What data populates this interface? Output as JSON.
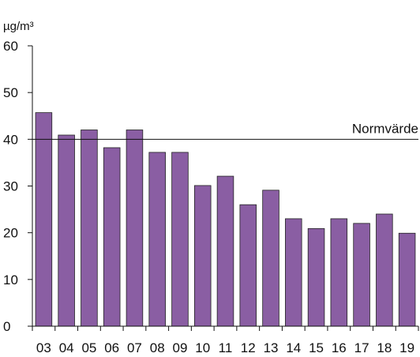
{
  "chart_data": {
    "type": "bar",
    "title": "",
    "xlabel": "",
    "ylabel": "µg/m³",
    "ylim": [
      0,
      60
    ],
    "yticks": [
      0,
      10,
      20,
      30,
      40,
      50,
      60
    ],
    "categories": [
      "03",
      "04",
      "05",
      "06",
      "07",
      "08",
      "09",
      "10",
      "11",
      "12",
      "13",
      "14",
      "15",
      "16",
      "17",
      "18",
      "19"
    ],
    "values": [
      45.7,
      40.9,
      42.0,
      38.2,
      42.0,
      37.2,
      37.2,
      30.1,
      32.1,
      26.0,
      29.1,
      23.0,
      20.9,
      23.0,
      22.0,
      24.0,
      19.9
    ],
    "reference_line": {
      "label": "Normvärde",
      "value": 40
    },
    "bar_color": "#8a5ea3",
    "grid": false,
    "legend": "none"
  }
}
